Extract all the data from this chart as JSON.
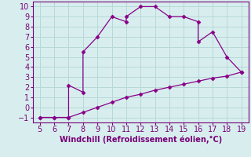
{
  "xlabel": "Windchill (Refroidissement éolien,°C)",
  "line1_x": [
    5,
    6,
    7,
    7,
    8,
    8,
    9,
    10,
    11,
    11,
    12,
    13,
    14,
    15,
    16,
    16,
    17,
    18,
    19
  ],
  "line1_y": [
    -1,
    -1,
    -1,
    2.2,
    1.5,
    5.5,
    7,
    9,
    8.5,
    9.0,
    10,
    10,
    9,
    9,
    8.5,
    6.5,
    7.5,
    5,
    3.5
  ],
  "line2_x": [
    5,
    6,
    7,
    8,
    9,
    10,
    11,
    12,
    13,
    14,
    15,
    16,
    17,
    18,
    19
  ],
  "line2_y": [
    -1,
    -1,
    -1,
    -0.5,
    0,
    0.5,
    1.0,
    1.3,
    1.7,
    2.0,
    2.3,
    2.6,
    2.9,
    3.1,
    3.5
  ],
  "line_color": "#880088",
  "marker": "D",
  "marker_size": 2.5,
  "xlim": [
    4.5,
    19.5
  ],
  "ylim": [
    -1.5,
    10.5
  ],
  "xticks": [
    5,
    6,
    7,
    8,
    9,
    10,
    11,
    12,
    13,
    14,
    15,
    16,
    17,
    18,
    19
  ],
  "yticks": [
    -1,
    0,
    1,
    2,
    3,
    4,
    5,
    6,
    7,
    8,
    9,
    10
  ],
  "bg_color": "#d8eeee",
  "grid_color": "#b8d8d8",
  "text_color": "#770077",
  "tick_fontsize": 7,
  "xlabel_fontsize": 7
}
